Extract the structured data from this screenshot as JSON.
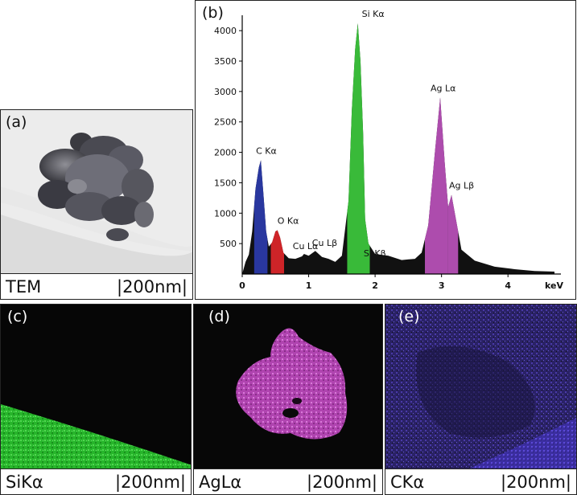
{
  "panels": {
    "a": {
      "label": "(a)",
      "caption_left": "TEM",
      "caption_right": "|200nm|"
    },
    "b": {
      "label": "(b)"
    },
    "c": {
      "label": "(c)",
      "caption_left": "SiKα",
      "caption_right": "|200nm|"
    },
    "d": {
      "label": "(d)",
      "caption_left": "AgLα",
      "caption_right": "|200nm|"
    },
    "e": {
      "label": "(e)",
      "caption_left": "CKα",
      "caption_right": "|200nm|"
    }
  },
  "chart_data": {
    "type": "area",
    "xlabel": "keV",
    "ylabel": "",
    "xlim": [
      0,
      4.7
    ],
    "ylim": [
      0,
      4200
    ],
    "xticks": [
      0,
      1,
      2,
      3,
      4
    ],
    "yticks": [
      500,
      1000,
      1500,
      2000,
      2500,
      3000,
      3500,
      4000
    ],
    "grid": false,
    "peaks": [
      {
        "label": "C Kα",
        "x": 0.28,
        "y": 1870,
        "color": "#2b3aa8"
      },
      {
        "label": "O Kα",
        "x": 0.53,
        "y": 720,
        "color": "#d9262a"
      },
      {
        "label": "Cu Lα",
        "x": 0.93,
        "y": 330,
        "color": "#000000"
      },
      {
        "label": "Cu Lβ",
        "x": 1.1,
        "y": 380,
        "color": "#000000"
      },
      {
        "label": "Si Kα",
        "x": 1.74,
        "y": 4120,
        "color": "#3cc43c"
      },
      {
        "label": "Si Kβ",
        "x": 1.84,
        "y": 320,
        "color": "#3cc43c"
      },
      {
        "label": "Ag Lα",
        "x": 2.98,
        "y": 2900,
        "color": "#b650b6"
      },
      {
        "label": "Ag Lβ",
        "x": 3.15,
        "y": 1300,
        "color": "#b650b6"
      }
    ],
    "series": [
      {
        "x": [
          0.0,
          0.05,
          0.1,
          0.15,
          0.2,
          0.25,
          0.28,
          0.32,
          0.36,
          0.4,
          0.45,
          0.5,
          0.53,
          0.57,
          0.62,
          0.7,
          0.8,
          0.9,
          0.93,
          1.0,
          1.1,
          1.2,
          1.3,
          1.4,
          1.5,
          1.6,
          1.65,
          1.7,
          1.74,
          1.78,
          1.82,
          1.85,
          1.9,
          2.0,
          2.2,
          2.4,
          2.6,
          2.7,
          2.8,
          2.9,
          2.98,
          3.05,
          3.1,
          3.15,
          3.2,
          3.3,
          3.5,
          3.8,
          4.1,
          4.4,
          4.7
        ],
        "y": [
          0,
          200,
          320,
          700,
          1400,
          1750,
          1870,
          1300,
          700,
          450,
          520,
          700,
          720,
          600,
          350,
          260,
          250,
          290,
          330,
          300,
          380,
          280,
          250,
          200,
          300,
          1200,
          2700,
          3700,
          4120,
          3500,
          2300,
          900,
          500,
          330,
          300,
          230,
          250,
          350,
          800,
          2000,
          2900,
          1800,
          1100,
          1300,
          1000,
          400,
          220,
          120,
          80,
          50,
          40
        ]
      }
    ]
  }
}
